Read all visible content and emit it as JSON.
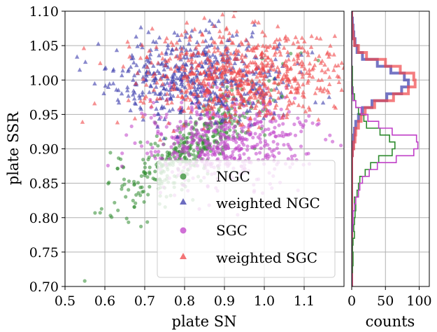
{
  "colors": {
    "ngc": "#2e8b2e",
    "weighted_ngc": "#3b3bab",
    "sgc": "#c040c8",
    "weighted_sgc": "#f0474a",
    "grid": "#b0b0b0",
    "axes": "#000000"
  },
  "chart_data": [
    {
      "type": "scatter",
      "xlabel": "plate SN",
      "ylabel": "plate SSR",
      "xlim": [
        0.5,
        1.2
      ],
      "ylim": [
        0.7,
        1.1
      ],
      "xticks": [
        "0.5",
        "0.6",
        "0.7",
        "0.8",
        "0.9",
        "1.0",
        "1.1"
      ],
      "yticks": [
        "0.70",
        "0.75",
        "0.80",
        "0.85",
        "0.90",
        "0.95",
        "1.00",
        "1.05",
        "1.10"
      ],
      "grid": true,
      "legend_position": "lower-right",
      "series": [
        {
          "name": "NGC",
          "marker": "circle",
          "color_key": "ngc",
          "center": [
            0.82,
            0.905
          ],
          "spread": [
            0.1,
            0.045
          ],
          "count": 420
        },
        {
          "name": "weighted NGC",
          "marker": "triangle",
          "color_key": "weighted_ngc",
          "center": [
            0.84,
            1.005
          ],
          "spread": [
            0.11,
            0.03
          ],
          "count": 520
        },
        {
          "name": "SGC",
          "marker": "circle",
          "color_key": "sgc",
          "center": [
            0.9,
            0.915
          ],
          "spread": [
            0.1,
            0.035
          ],
          "count": 560
        },
        {
          "name": "weighted SGC",
          "marker": "triangle",
          "color_key": "weighted_sgc",
          "center": [
            0.93,
            1.005
          ],
          "spread": [
            0.13,
            0.035
          ],
          "count": 680
        }
      ]
    },
    {
      "type": "histogram",
      "orientation": "horizontal",
      "xlabel": "counts",
      "xlim": [
        0,
        115
      ],
      "ylim": [
        0.7,
        1.1
      ],
      "xticks": [
        "0",
        "50",
        "100"
      ],
      "grid": true,
      "bin_edges": [
        0.7,
        0.71,
        0.72,
        0.73,
        0.74,
        0.75,
        0.76,
        0.77,
        0.78,
        0.79,
        0.8,
        0.81,
        0.82,
        0.83,
        0.84,
        0.85,
        0.86,
        0.87,
        0.88,
        0.89,
        0.9,
        0.91,
        0.92,
        0.93,
        0.94,
        0.95,
        0.96,
        0.97,
        0.98,
        0.99,
        1.0,
        1.01,
        1.02,
        1.03,
        1.04,
        1.05,
        1.06,
        1.07,
        1.08,
        1.09,
        1.1
      ],
      "series": [
        {
          "name": "NGC",
          "color_key": "ngc",
          "counts": [
            0,
            0,
            1,
            2,
            2,
            1,
            2,
            4,
            3,
            4,
            5,
            6,
            4,
            8,
            10,
            12,
            20,
            28,
            40,
            60,
            64,
            56,
            42,
            22,
            18,
            10,
            6,
            4,
            2,
            1,
            1,
            1,
            0,
            0,
            0,
            0,
            0,
            0,
            0,
            0
          ]
        },
        {
          "name": "weighted NGC",
          "color_key": "weighted_ngc",
          "counts": [
            0,
            0,
            0,
            0,
            0,
            0,
            0,
            0,
            0,
            0,
            0,
            0,
            0,
            0,
            0,
            0,
            0,
            0,
            0,
            1,
            2,
            3,
            4,
            6,
            10,
            16,
            30,
            52,
            74,
            84,
            78,
            58,
            38,
            16,
            8,
            5,
            3,
            2,
            1,
            0
          ]
        },
        {
          "name": "SGC",
          "color_key": "sgc",
          "counts": [
            0,
            0,
            0,
            0,
            0,
            0,
            0,
            0,
            1,
            2,
            2,
            4,
            6,
            10,
            12,
            16,
            26,
            38,
            66,
            92,
            98,
            96,
            60,
            40,
            24,
            14,
            6,
            2,
            1,
            0,
            0,
            0,
            0,
            0,
            0,
            0,
            0,
            0,
            0,
            0
          ]
        },
        {
          "name": "weighted SGC",
          "color_key": "weighted_sgc",
          "counts": [
            0,
            0,
            0,
            0,
            0,
            0,
            0,
            0,
            0,
            0,
            0,
            0,
            0,
            0,
            0,
            0,
            0,
            0,
            0,
            1,
            3,
            5,
            6,
            10,
            14,
            20,
            34,
            62,
            84,
            94,
            92,
            72,
            50,
            22,
            10,
            4,
            2,
            1,
            0,
            0
          ]
        }
      ]
    }
  ]
}
